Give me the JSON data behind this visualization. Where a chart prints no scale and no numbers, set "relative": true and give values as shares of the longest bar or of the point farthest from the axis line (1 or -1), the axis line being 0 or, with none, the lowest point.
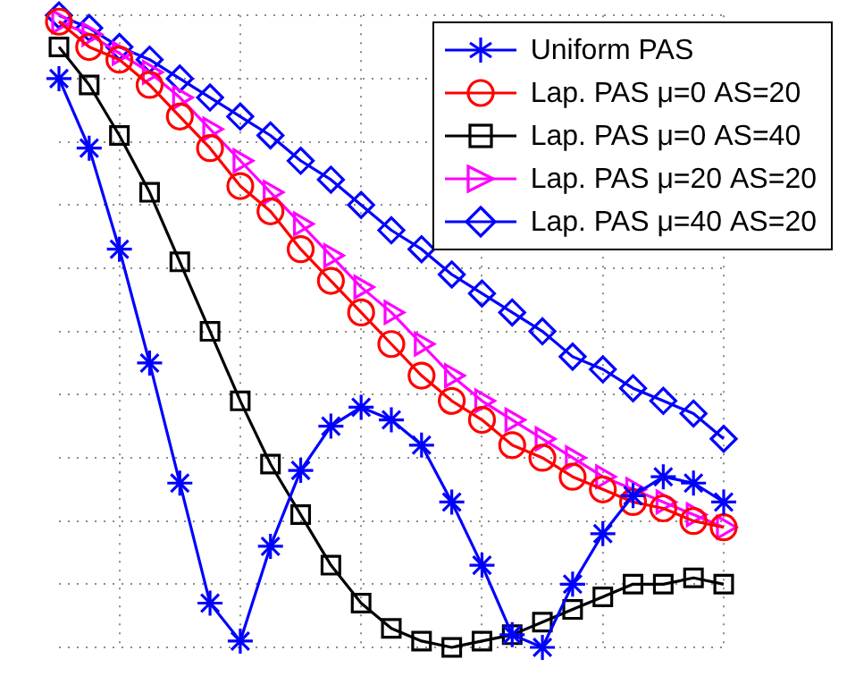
{
  "chart_data": {
    "type": "line",
    "relative": true,
    "grid": true,
    "legend": "top right",
    "categories": [
      null,
      null,
      null,
      null,
      null,
      null,
      null,
      null,
      null,
      null,
      null,
      null,
      null,
      null,
      null,
      null,
      null,
      null,
      null,
      null,
      null,
      null,
      null
    ],
    "series": [
      {
        "name": "Uniform PAS",
        "color": "#0000ff",
        "marker": "cross",
        "values": [
          0.9,
          0.79,
          0.63,
          0.45,
          0.26,
          0.07,
          0.01,
          0.16,
          0.28,
          0.35,
          0.38,
          0.36,
          0.32,
          0.23,
          0.13,
          0.02,
          0,
          0.1,
          0.18,
          0.24,
          0.27,
          0.26,
          0.23
        ]
      },
      {
        "name": "Lap. PAS μ=0 AS=20",
        "color": "#ff0000",
        "marker": "circle",
        "values": [
          0.99,
          0.95,
          0.93,
          0.89,
          0.84,
          0.79,
          0.73,
          0.69,
          0.63,
          0.58,
          0.53,
          0.48,
          0.43,
          0.39,
          0.36,
          0.32,
          0.3,
          0.27,
          0.25,
          0.23,
          0.22,
          0.2,
          0.19
        ]
      },
      {
        "name": "Lap. PAS μ=0 AS=40",
        "color": "#000000",
        "marker": "square",
        "values": [
          0.95,
          0.89,
          0.81,
          0.72,
          0.61,
          0.5,
          0.39,
          0.29,
          0.21,
          0.13,
          0.07,
          0.03,
          0.01,
          0,
          0.01,
          0.02,
          0.04,
          0.06,
          0.08,
          0.1,
          0.1,
          0.11,
          0.1
        ]
      },
      {
        "name": "Lap. PAS μ=20 AS=20",
        "color": "#ff00ff",
        "marker": "triangle",
        "values": [
          0.99,
          0.97,
          0.94,
          0.91,
          0.87,
          0.82,
          0.77,
          0.72,
          0.67,
          0.62,
          0.57,
          0.53,
          0.48,
          0.43,
          0.39,
          0.36,
          0.33,
          0.3,
          0.27,
          0.25,
          0.23,
          0.21,
          0.19
        ]
      },
      {
        "name": "Lap. PAS μ=40 AS=20",
        "color": "#0000ff",
        "marker": "diamond",
        "values": [
          1,
          0.98,
          0.95,
          0.93,
          0.9,
          0.87,
          0.84,
          0.81,
          0.77,
          0.74,
          0.7,
          0.66,
          0.63,
          0.59,
          0.56,
          0.53,
          0.5,
          0.46,
          0.44,
          0.41,
          0.39,
          0.37,
          0.33
        ]
      }
    ]
  }
}
